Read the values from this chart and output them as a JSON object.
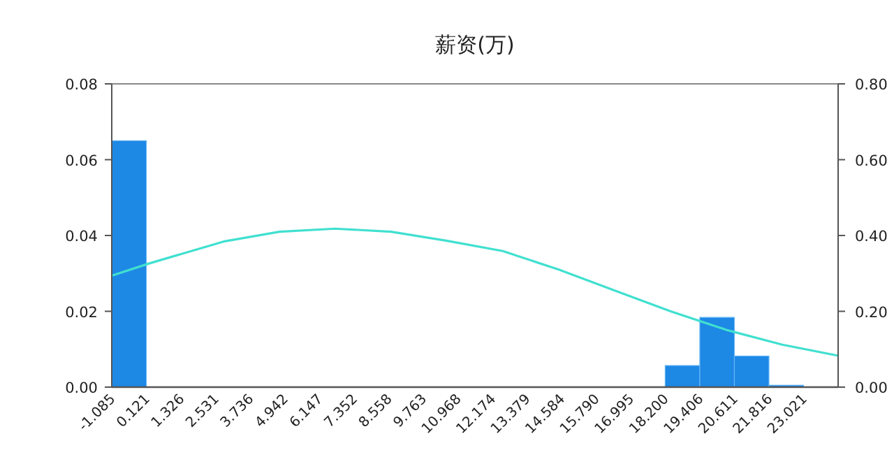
{
  "chart_data": {
    "type": "histogram",
    "title": "薪资(万)",
    "bins": [
      -1.085,
      0.121,
      1.326,
      2.531,
      3.736,
      4.942,
      6.147,
      7.352,
      8.558,
      9.763,
      10.968,
      12.174,
      13.379,
      14.584,
      15.79,
      16.995,
      18.2,
      19.406,
      20.611,
      21.816,
      23.021
    ],
    "xlim": [
      -1.085,
      24.226
    ],
    "xticks": [
      {
        "value": -1.085,
        "label": "-1.085"
      },
      {
        "value": 0.121,
        "label": "0.121"
      },
      {
        "value": 1.326,
        "label": "1.326"
      },
      {
        "value": 2.531,
        "label": "2.531"
      },
      {
        "value": 3.736,
        "label": "3.736"
      },
      {
        "value": 4.942,
        "label": "4.942"
      },
      {
        "value": 6.147,
        "label": "6.147"
      },
      {
        "value": 7.352,
        "label": "7.352"
      },
      {
        "value": 8.558,
        "label": "8.558"
      },
      {
        "value": 9.763,
        "label": "9.763"
      },
      {
        "value": 10.968,
        "label": "10.968"
      },
      {
        "value": 12.174,
        "label": "12.174"
      },
      {
        "value": 13.379,
        "label": "13.379"
      },
      {
        "value": 14.584,
        "label": "14.584"
      },
      {
        "value": 15.79,
        "label": "15.790"
      },
      {
        "value": 16.995,
        "label": "16.995"
      },
      {
        "value": 18.2,
        "label": "18.200"
      },
      {
        "value": 19.406,
        "label": "19.406"
      },
      {
        "value": 20.611,
        "label": "20.611"
      },
      {
        "value": 21.816,
        "label": "21.816"
      },
      {
        "value": 23.021,
        "label": "23.021"
      }
    ],
    "ylim": [
      0,
      0.08
    ],
    "yticks": [
      {
        "value": 0,
        "label": "0.00"
      },
      {
        "value": 0.02,
        "label": "0.02"
      },
      {
        "value": 0.04,
        "label": "0.04"
      },
      {
        "value": 0.06,
        "label": "0.06"
      },
      {
        "value": 0.08,
        "label": "0.08"
      }
    ],
    "y2lim": [
      0,
      0.8
    ],
    "y2ticks": [
      {
        "value": 0,
        "label": "0.00"
      },
      {
        "value": 0.2,
        "label": "0.20"
      },
      {
        "value": 0.4,
        "label": "0.40"
      },
      {
        "value": 0.6,
        "label": "0.60"
      },
      {
        "value": 0.8,
        "label": "0.80"
      }
    ],
    "series": [
      {
        "color": "#1e88e5",
        "values": [
          0.065,
          0,
          0,
          0,
          0,
          0,
          0,
          0,
          0,
          0,
          0,
          0,
          0,
          0,
          0,
          0,
          0.0057,
          0.0184,
          0.0082,
          0.0005
        ]
      },
      {
        "type": "line",
        "axis": "y2",
        "color": "#40e0d0",
        "x": [
          -1.085,
          0.21,
          2.81,
          4.76,
          6.7,
          8.65,
          10.6,
          12.54,
          14.49,
          16.44,
          18.39,
          20.33,
          22.28,
          24.226
        ],
        "values": [
          0.294,
          0.326,
          0.384,
          0.41,
          0.418,
          0.41,
          0.386,
          0.359,
          0.31,
          0.255,
          0.2,
          0.151,
          0.112,
          0.083
        ]
      }
    ]
  }
}
